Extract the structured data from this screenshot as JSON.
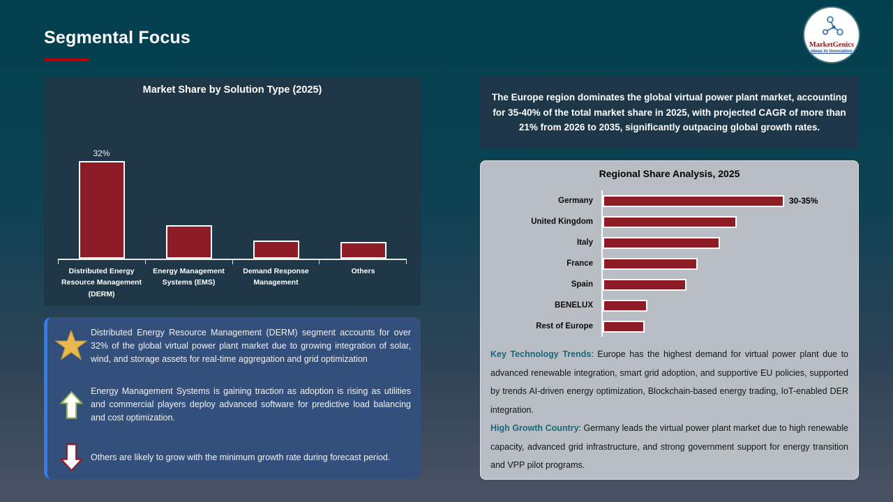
{
  "header": {
    "title": "Segmental Focus"
  },
  "logo": {
    "brand": "MarketGenics",
    "tagline": "Ideas to Innovation"
  },
  "colors": {
    "background_top": "#03404f",
    "background_bottom": "#4a5363",
    "accent_red": "#c00000",
    "bar_red": "#8e1c26",
    "dark_panel": "#1f3647",
    "insight_panel": "#33507d",
    "insight_panel_edge": "#2f7ef0",
    "regional_panel": "#b9bec4",
    "teal_label": "#17697e",
    "star_gold": "#eab94d"
  },
  "insights": {
    "items": [
      {
        "icon": "star-icon",
        "text": "Distributed Energy Resource Management (DERM) segment accounts for over 32% of the global virtual power plant market due to growing integration of solar, wind, and storage assets for real-time aggregation and grid optimization"
      },
      {
        "icon": "arrow-up-icon",
        "text": "Energy Management Systems is gaining traction as adoption is rising as utilities and commercial players deploy advanced software for predictive load balancing and cost optimization."
      },
      {
        "icon": "arrow-down-icon",
        "text": "Others are likely to grow with the minimum growth rate during forecast period."
      }
    ]
  },
  "europe_summary": "The Europe region dominates the global virtual power plant market, accounting for 35-40% of the total market share in 2025, with projected CAGR of more than 21% from 2026 to 2035, significantly outpacing global growth rates.",
  "regional_notes": [
    {
      "label": "Key Technology Trends",
      "text": ": Europe has the highest demand for virtual power plant due to advanced renewable integration, smart grid adoption, and supportive EU policies, supported by trends AI-driven energy optimization, Blockchain-based energy trading, IoT-enabled DER integration."
    },
    {
      "label": "High Growth Country",
      "text": ": Germany leads the virtual power plant market due to high renewable capacity, advanced grid infrastructure, and strong government support for energy transition and VPP pilot programs."
    }
  ],
  "chart_data": [
    {
      "type": "bar",
      "orientation": "vertical",
      "title": "Market Share by Solution Type (2025)",
      "categories": [
        "Distributed Energy Resource Management (DERM)",
        "Energy Management Systems (EMS)",
        "Demand Response Management",
        "Others"
      ],
      "values": [
        32,
        11,
        6,
        5.5
      ],
      "data_labels": [
        "32%",
        "",
        "",
        ""
      ],
      "unit": "%",
      "ylim": [
        0,
        36
      ],
      "grid": false,
      "bar_color": "#8e1c26"
    },
    {
      "type": "bar",
      "orientation": "horizontal",
      "title": "Regional Share Analysis, 2025",
      "categories": [
        "Germany",
        "United Kingdom",
        "Italy",
        "France",
        "Spain",
        "BENELUX",
        "Rest of Europe"
      ],
      "values": [
        32.5,
        24,
        21,
        17,
        15,
        8,
        7.5
      ],
      "data_labels": [
        "30-35%",
        "",
        "",
        "",
        "",
        "",
        ""
      ],
      "unit": "%",
      "xlim": [
        0,
        36
      ],
      "grid": false,
      "bar_color": "#8e1c26"
    }
  ]
}
